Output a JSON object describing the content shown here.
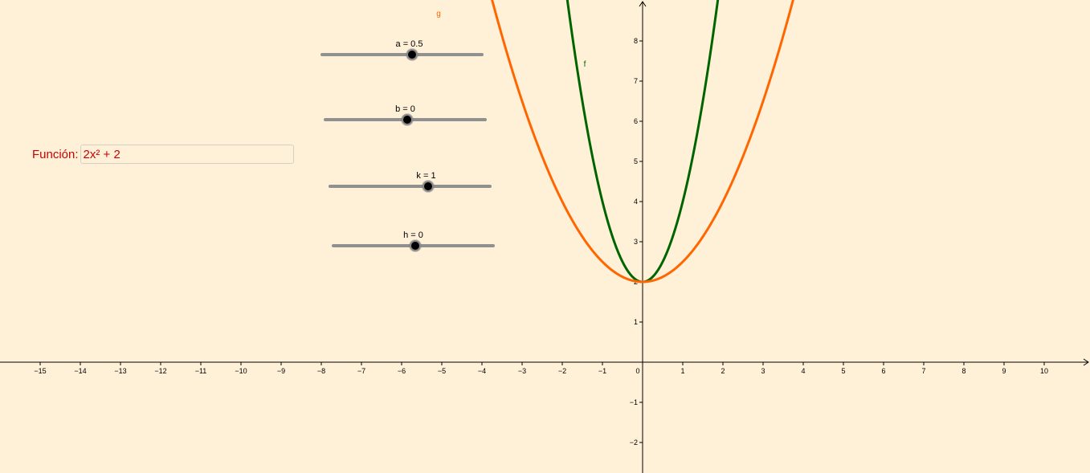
{
  "input_box": {
    "label": "Función:",
    "value": "2x² + 2"
  },
  "sliders": [
    {
      "name": "a",
      "label": "a = 0.5",
      "value": 0.5,
      "min": -5,
      "max": 5
    },
    {
      "name": "b",
      "label": "b = 0",
      "value": 0,
      "min": -5,
      "max": 5
    },
    {
      "name": "k",
      "label": "k = 1",
      "value": 1,
      "min": -5,
      "max": 5
    },
    {
      "name": "h",
      "label": "h = 0",
      "value": 0,
      "min": -5,
      "max": 5
    }
  ],
  "curves": [
    {
      "name": "f",
      "label": "f",
      "color": "#006400",
      "expression": "2x^2 + 2"
    },
    {
      "name": "g",
      "label": "g",
      "color": "#ff6600",
      "expression": "0.5x^2 + 2"
    }
  ],
  "chart_data": {
    "type": "line",
    "x_axis_ticks": [
      -15,
      -14,
      -13,
      -12,
      -11,
      -10,
      -9,
      -8,
      -7,
      -6,
      -5,
      -4,
      -3,
      -2,
      -1,
      0,
      1,
      2,
      3,
      4,
      5,
      6,
      7,
      8,
      9,
      10
    ],
    "y_axis_ticks": [
      -2,
      -1,
      1,
      2,
      3,
      4,
      5,
      6,
      7,
      8
    ],
    "xlim": [
      -16,
      11.1
    ],
    "ylim": [
      -2.7,
      9
    ],
    "grid": false,
    "series": [
      {
        "name": "f",
        "color": "#006400",
        "a": 2,
        "c": 2
      },
      {
        "name": "g",
        "color": "#ff6600",
        "a": 0.5,
        "c": 2
      }
    ]
  },
  "colors": {
    "background": "#fff0d8",
    "axis": "#000000",
    "input_text": "#cc0000",
    "slider_track": "#909090"
  }
}
